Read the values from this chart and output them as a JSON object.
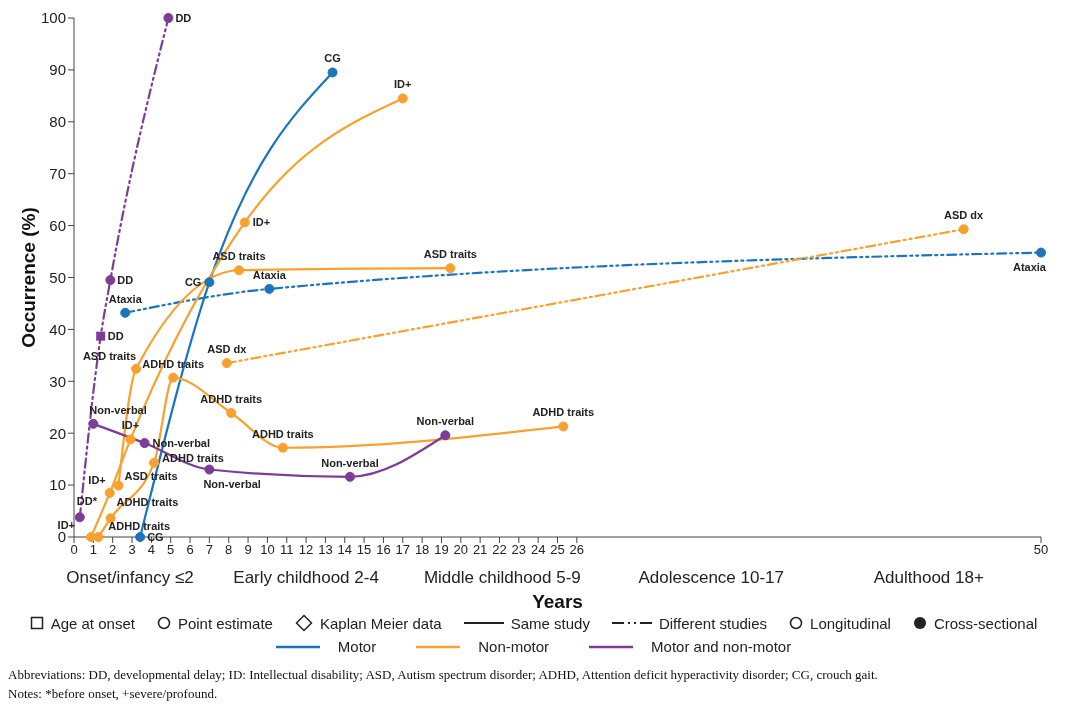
{
  "chart_data": {
    "type": "line",
    "xlabel": "Years",
    "ylabel": "Occurrence (%)",
    "xlim": [
      0,
      50
    ],
    "xticks": [
      0,
      1,
      2,
      3,
      4,
      5,
      6,
      7,
      8,
      9,
      10,
      11,
      12,
      13,
      14,
      15,
      16,
      17,
      18,
      19,
      20,
      21,
      22,
      23,
      24,
      25,
      26,
      50
    ],
    "ylim": [
      0,
      100
    ],
    "yticks": [
      0,
      10,
      20,
      30,
      40,
      50,
      60,
      70,
      80,
      90,
      100
    ],
    "grid": false,
    "legend": "bottom",
    "series": [
      {
        "color": "#7d3c98",
        "line_style": "dashed",
        "marker": "none",
        "x": [
          0.3,
          1.38,
          1.88,
          4.88
        ],
        "values": [
          3.8,
          38.7,
          49.5,
          100
        ]
      },
      {
        "type": "scatter",
        "color": "#7d3c98",
        "marker": "circle",
        "x": [
          0.3,
          1.88,
          4.88
        ],
        "values": [
          3.8,
          49.5,
          100
        ]
      },
      {
        "type": "scatter",
        "color": "#7d3c98",
        "marker": "square",
        "x": [
          1.38
        ],
        "values": [
          38.7
        ]
      },
      {
        "color": "#1a75bc",
        "line_style": "dashed",
        "marker": "circle",
        "x": [
          2.65,
          10.1,
          50
        ],
        "values": [
          43.2,
          47.8,
          54.8
        ]
      },
      {
        "name": "Motor",
        "color": "#1a75bc",
        "line_style": "solid",
        "marker": "circle",
        "x": [
          3.42,
          7,
          13.37
        ],
        "values": [
          0,
          49.1,
          89.5
        ]
      },
      {
        "name": "Non-motor",
        "color": "#f9a12e",
        "line_style": "solid",
        "marker": "circle",
        "x": [
          0.88,
          1.85,
          2.92,
          8.83,
          17
        ],
        "values": [
          0,
          8.5,
          18.8,
          60.6,
          84.5
        ]
      },
      {
        "color": "#f9a12e",
        "line_style": "solid",
        "marker": "circle",
        "x": [
          2.3,
          3.21,
          8.53,
          19.46
        ],
        "values": [
          9.9,
          32.4,
          51.4,
          51.8
        ]
      },
      {
        "color": "#f9a12e",
        "line_style": "solid",
        "marker": "circle",
        "x": [
          1.26,
          1.89,
          4.14,
          5.13,
          8.13,
          10.8,
          25.3
        ],
        "values": [
          0,
          3.6,
          14.3,
          30.7,
          23.9,
          17.2,
          21.3
        ]
      },
      {
        "color": "#f9a12e",
        "line_style": "dashed",
        "marker": "circle",
        "x": [
          7.9,
          46
        ],
        "values": [
          33.5,
          59.3
        ]
      },
      {
        "name": "Motor and non-motor",
        "color": "#7d3c98",
        "line_style": "solid",
        "marker": "circle",
        "x": [
          1,
          3.65,
          7,
          14.27,
          19.2
        ],
        "values": [
          21.8,
          18.1,
          13,
          11.6,
          19.6
        ]
      }
    ],
    "annotations": [
      {
        "text": "DD*",
        "x": 0.3,
        "y": 3.8
      },
      {
        "text": "DD",
        "x": 1.38,
        "y": 38.7
      },
      {
        "text": "DD",
        "x": 1.88,
        "y": 49.5
      },
      {
        "text": "DD",
        "x": 4.88,
        "y": 100
      },
      {
        "text": "Ataxia",
        "x": 2.65,
        "y": 43.2
      },
      {
        "text": "Ataxia",
        "x": 10.1,
        "y": 47.8
      },
      {
        "text": "Ataxia",
        "x": 50,
        "y": 54.8
      },
      {
        "text": "CG",
        "x": 3.42,
        "y": 0
      },
      {
        "text": "CG",
        "x": 7,
        "y": 49.1
      },
      {
        "text": "CG",
        "x": 13.37,
        "y": 89.5
      },
      {
        "text": "ID+",
        "x": 0.88,
        "y": 0
      },
      {
        "text": "ID+",
        "x": 1.85,
        "y": 8.5
      },
      {
        "text": "ID+",
        "x": 2.92,
        "y": 18.8
      },
      {
        "text": "ID+",
        "x": 8.83,
        "y": 60.6
      },
      {
        "text": "ID+",
        "x": 17,
        "y": 84.5
      },
      {
        "text": "ASD traits",
        "x": 2.3,
        "y": 9.9
      },
      {
        "text": "ASD traits",
        "x": 3.21,
        "y": 32.4
      },
      {
        "text": "ASD traits",
        "x": 8.53,
        "y": 51.4
      },
      {
        "text": "ASD traits",
        "x": 19.46,
        "y": 51.8
      },
      {
        "text": "ADHD traits",
        "x": 1.26,
        "y": 0
      },
      {
        "text": "ADHD traits",
        "x": 1.89,
        "y": 3.6
      },
      {
        "text": "ADHD traits",
        "x": 4.14,
        "y": 14.3
      },
      {
        "text": "ADHD traits",
        "x": 5.13,
        "y": 30.7
      },
      {
        "text": "ADHD traits",
        "x": 8.13,
        "y": 23.9
      },
      {
        "text": "ADHD traits",
        "x": 10.8,
        "y": 17.2
      },
      {
        "text": "ADHD traits",
        "x": 25.3,
        "y": 21.3
      },
      {
        "text": "ASD dx",
        "x": 7.9,
        "y": 33.5
      },
      {
        "text": "ASD dx",
        "x": 46,
        "y": 59.3
      },
      {
        "text": "Non-verbal",
        "x": 1,
        "y": 21.8
      },
      {
        "text": "Non-verbal",
        "x": 3.65,
        "y": 18.1
      },
      {
        "text": "Non-verbal",
        "x": 7,
        "y": 13
      },
      {
        "text": "Non-verbal",
        "x": 14.27,
        "y": 11.6
      },
      {
        "text": "Non-verbal",
        "x": 19.2,
        "y": 19.6
      },
      "Onset/infancy ≤2",
      "Early childhood 2-4",
      "Middle childhood 5-9",
      "Adolescence 10-17",
      "Adulthood 18+",
      "Age at onset",
      "Point estimate",
      "Kaplan Meier data",
      "Same study",
      "Different studies",
      "Longitudinal",
      "Cross-sectional",
      "Abbreviations: DD, developmental delay; ID: Intellectual disability; ASD, Autism spectrum disorder; ADHD, Attention deficit hyperactivity disorder; CG, crouch gait.",
      "Notes: *before onset, +severe/profound."
    ]
  }
}
